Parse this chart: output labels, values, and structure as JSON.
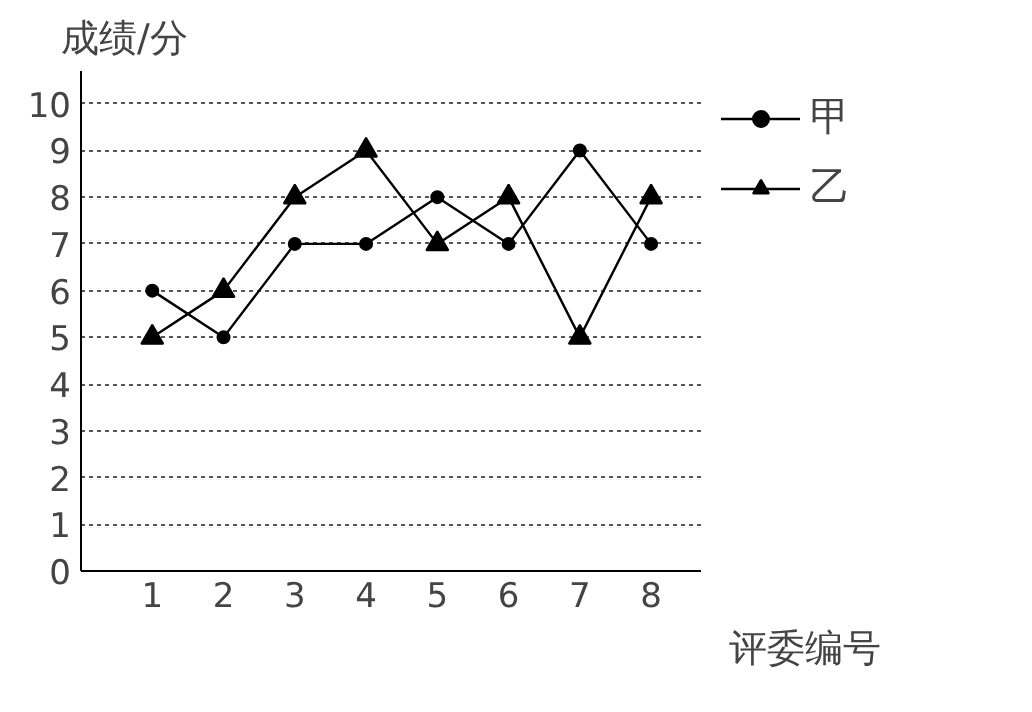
{
  "chart_data": {
    "type": "line",
    "xlabel": "评委编号",
    "ylabel": "成绩/分",
    "x": [
      1,
      2,
      3,
      4,
      5,
      6,
      7,
      8
    ],
    "series": [
      {
        "name": "甲",
        "color": "#000000",
        "marker": "circle",
        "values": [
          6,
          5,
          7,
          7,
          8,
          7,
          9,
          7
        ]
      },
      {
        "name": "乙",
        "color": "#000000",
        "marker": "triangle",
        "values": [
          5,
          6,
          8,
          9,
          7,
          8,
          5,
          8
        ]
      }
    ],
    "xlim": [
      0,
      8.7
    ],
    "xticks": [
      1,
      2,
      3,
      4,
      5,
      6,
      7,
      8
    ],
    "ylim": [
      0,
      10.7
    ],
    "yticks": [
      0,
      1,
      2,
      3,
      4,
      5,
      6,
      7,
      8,
      9,
      10
    ],
    "grid": "y",
    "line_style": "solid",
    "legend": "top right"
  }
}
